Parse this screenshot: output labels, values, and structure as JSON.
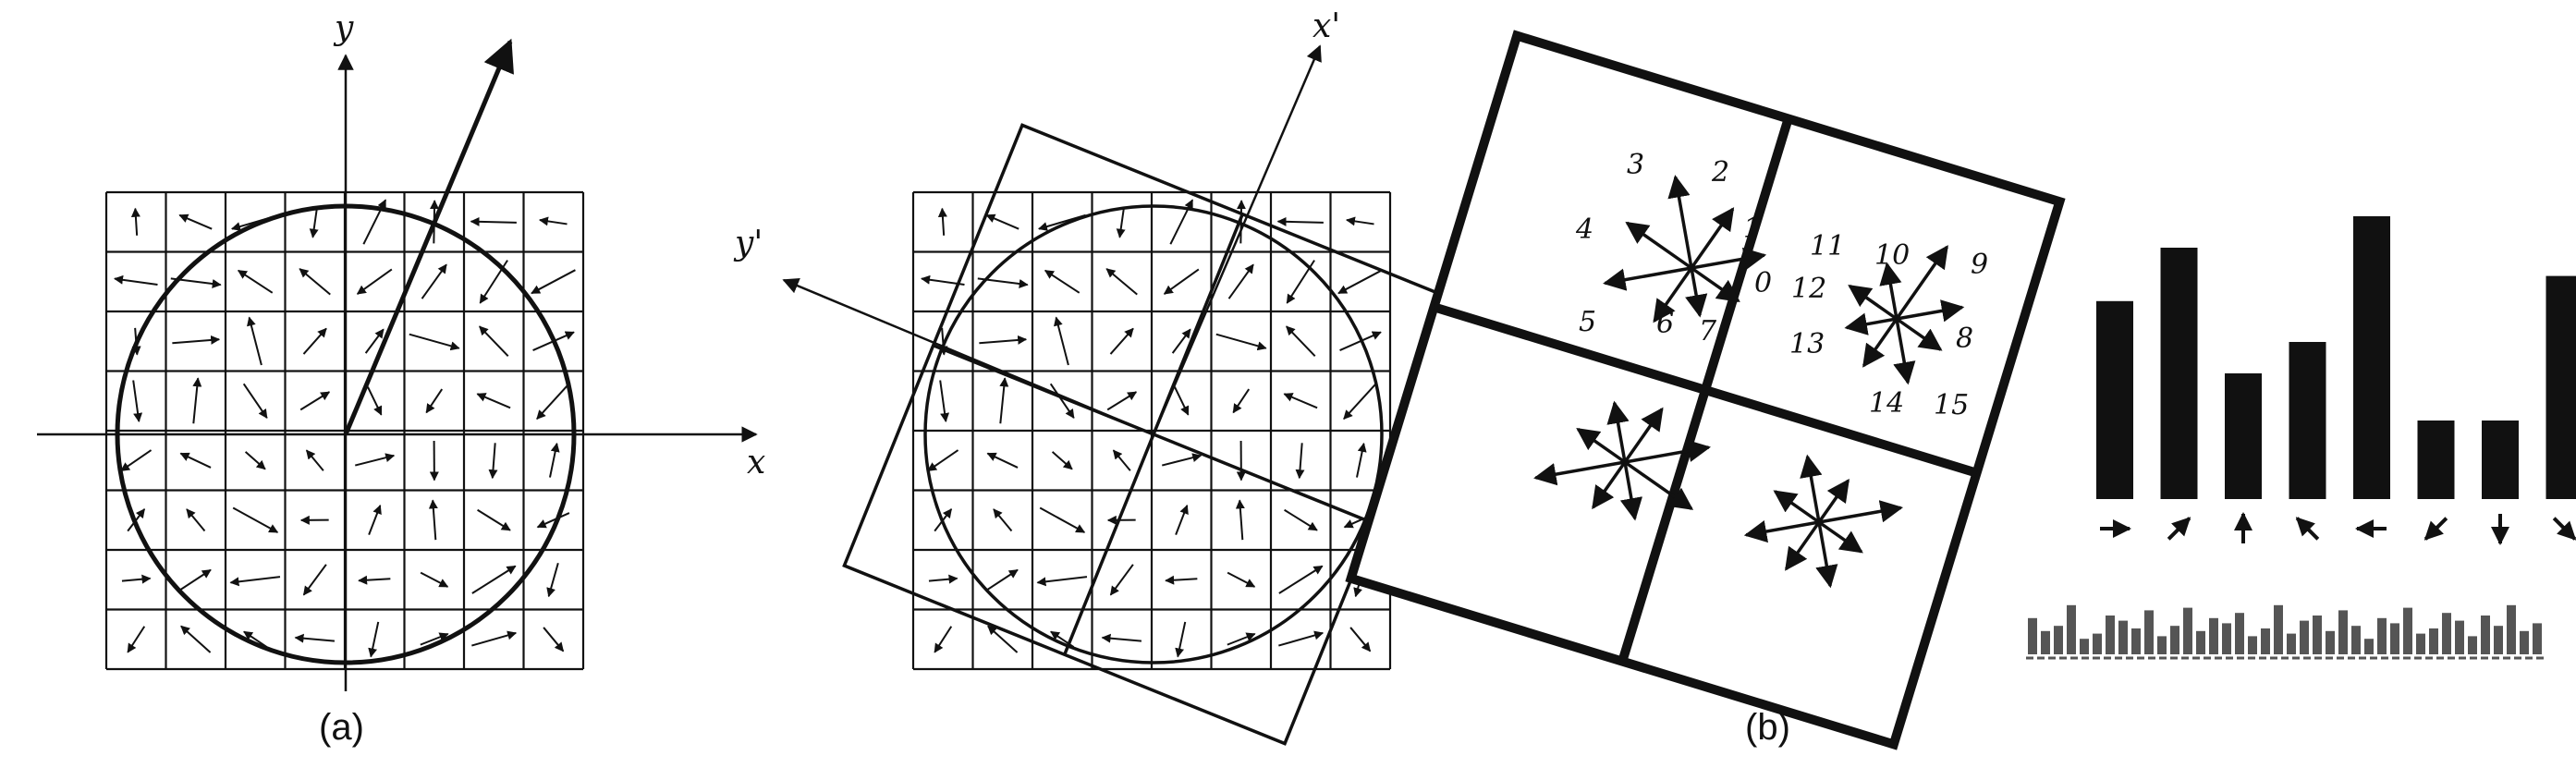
{
  "panel_a": {
    "caption": "(a)",
    "axis_x": "x",
    "axis_y": "y",
    "rotated_axis_x": "x'",
    "rotated_axis_y": "y'"
  },
  "panel_b": {
    "caption": "(b)",
    "bin_labels": [
      "0",
      "1",
      "2",
      "3",
      "4",
      "5",
      "6",
      "7",
      "8",
      "9",
      "10",
      "11",
      "12",
      "13",
      "14",
      "15"
    ],
    "histogram": {
      "values": [
        0.63,
        0.8,
        0.4,
        0.5,
        0.9,
        0.25,
        0.25,
        0.71
      ],
      "direction_degrees": [
        0,
        45,
        90,
        135,
        180,
        225,
        270,
        315
      ]
    },
    "descriptor_strip": {
      "values": [
        0.7,
        0.45,
        0.55,
        0.95,
        0.3,
        0.4,
        0.75,
        0.65,
        0.5,
        0.85,
        0.35,
        0.55,
        0.9,
        0.45,
        0.7,
        0.6,
        0.8,
        0.35,
        0.5,
        0.95,
        0.4,
        0.65,
        0.75,
        0.45,
        0.85,
        0.55,
        0.3,
        0.7,
        0.6,
        0.9,
        0.4,
        0.5,
        0.8,
        0.65,
        0.35,
        0.75,
        0.55,
        0.95,
        0.45,
        0.6
      ]
    }
  }
}
